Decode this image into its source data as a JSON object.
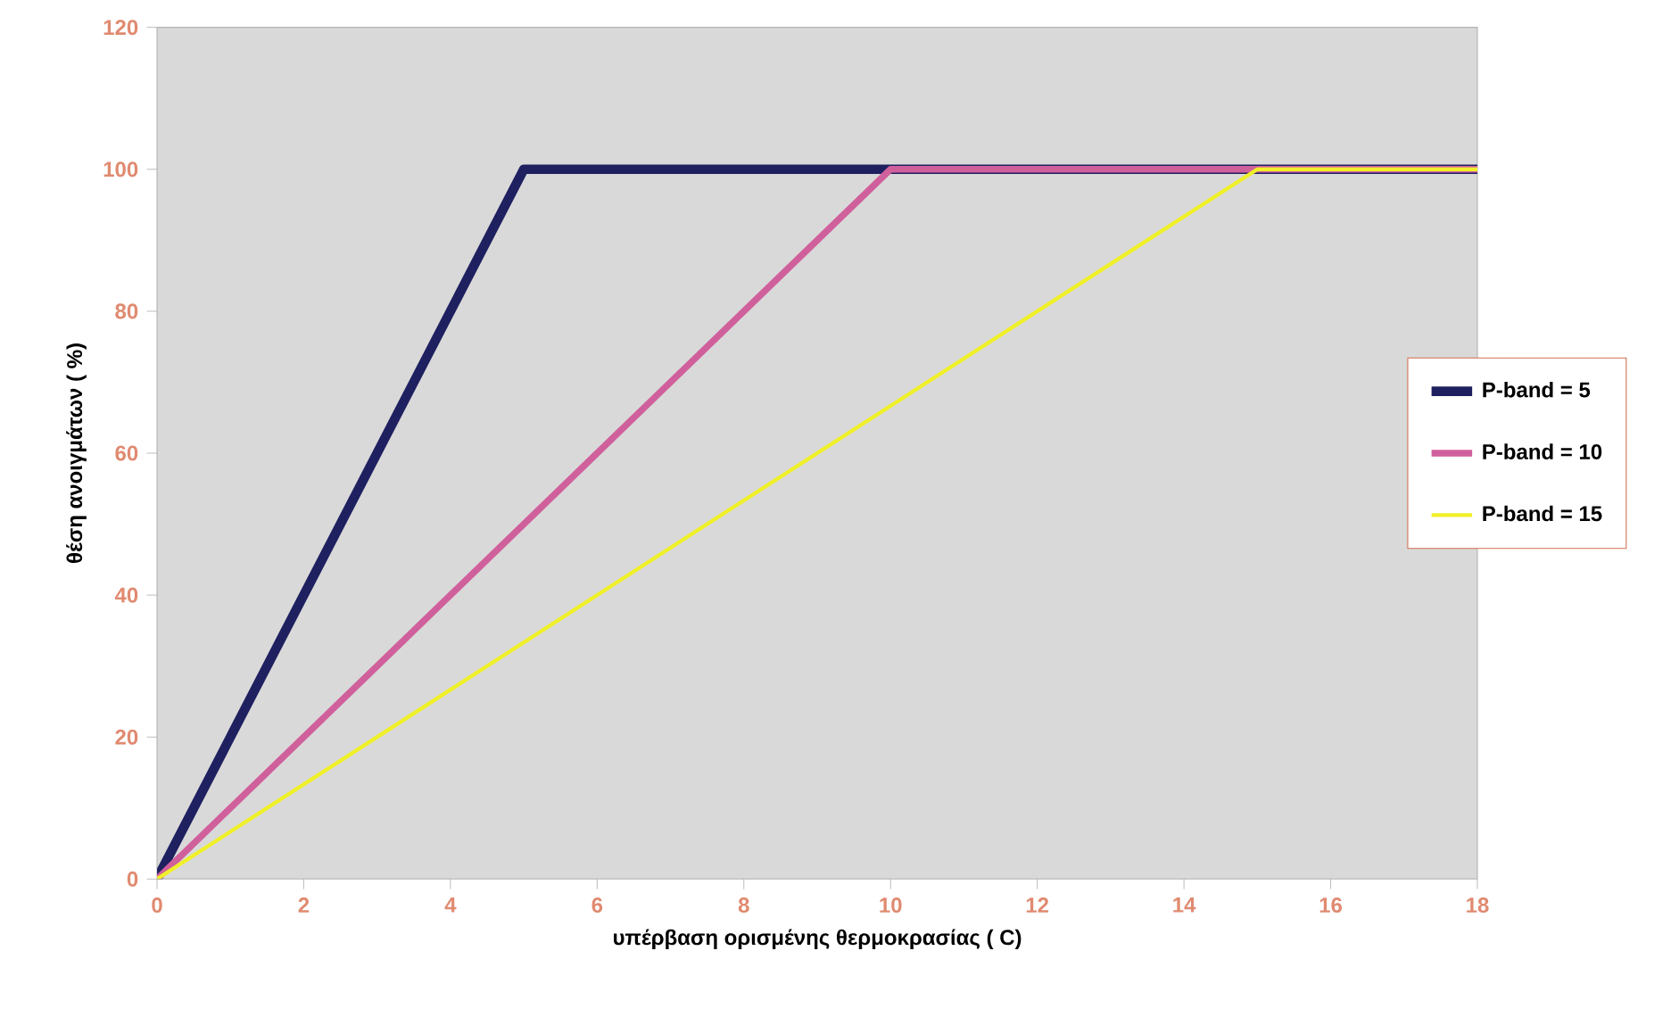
{
  "chart_data": {
    "type": "line",
    "xlabel": "υπέρβαση ορισμένης θερμοκρασίας ( C)",
    "ylabel": "θέση ανοιγμάτων ( %)",
    "xlim": [
      0,
      18
    ],
    "xticks": [
      0,
      2,
      4,
      6,
      8,
      10,
      12,
      14,
      16,
      18
    ],
    "ylim": [
      0,
      120
    ],
    "yticks": [
      0,
      20,
      40,
      60,
      80,
      100,
      120
    ],
    "legend": "right",
    "marker": "none",
    "line_style": "solid",
    "series": [
      {
        "name": "P-band = 5",
        "color": "#1f2060",
        "x": [
          0,
          5,
          18
        ],
        "values": [
          0,
          100,
          100
        ]
      },
      {
        "name": "P-band = 10",
        "color": "#d0609c",
        "x": [
          0,
          10,
          18
        ],
        "values": [
          0,
          100,
          100
        ]
      },
      {
        "name": "P-band = 15",
        "color": "#f0f028",
        "x": [
          0,
          15,
          18
        ],
        "values": [
          0,
          100,
          100
        ]
      }
    ]
  }
}
